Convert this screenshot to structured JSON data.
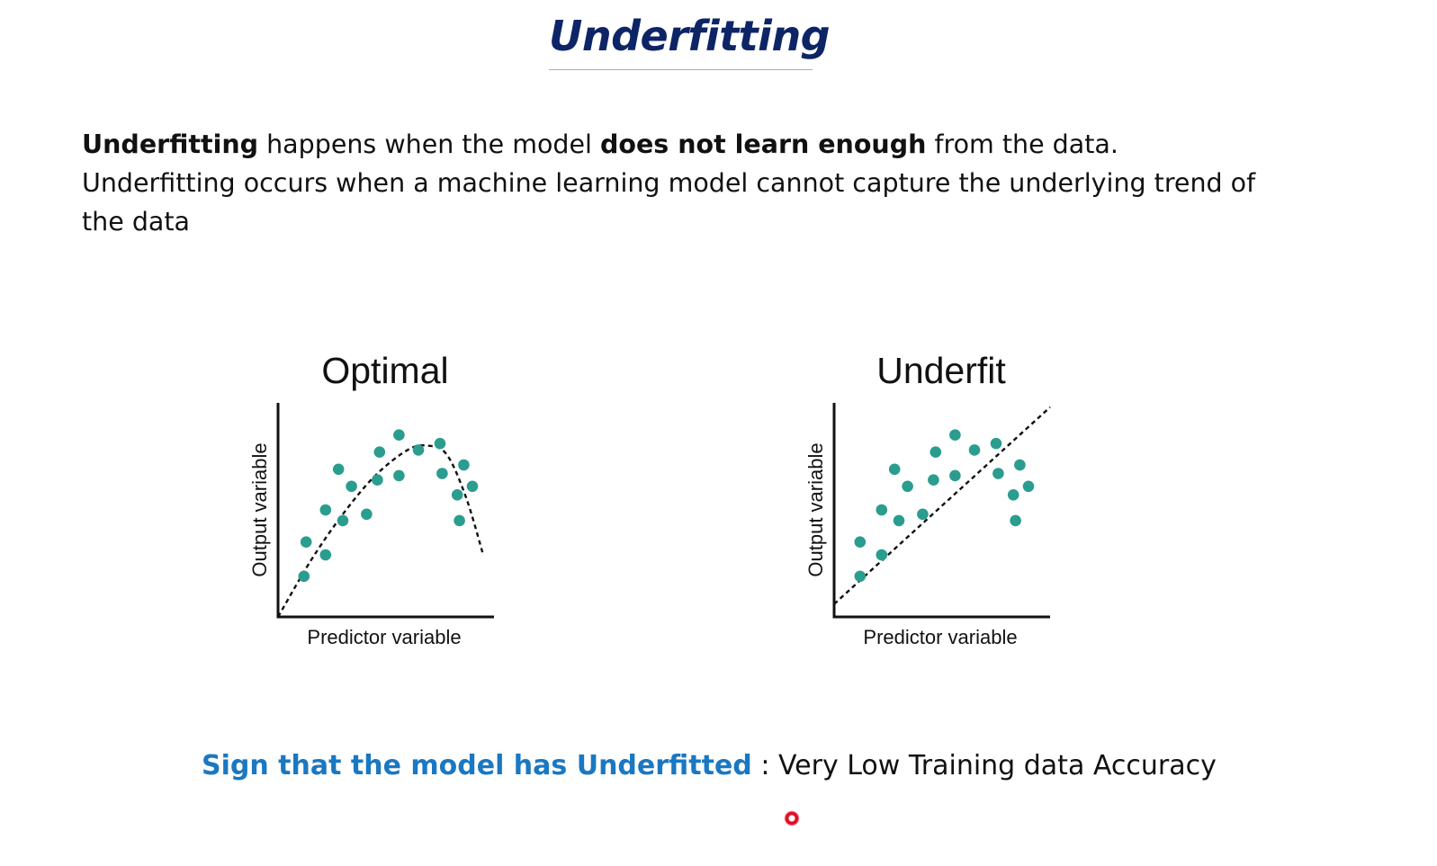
{
  "slide": {
    "title": "Underfitting",
    "intro": {
      "term": "Underfitting",
      "text_1": " happens when the model ",
      "emphasis": "does not learn enough",
      "text_2": " from the data. Underfitting occurs when a machine learning model cannot capture the underlying trend of the data"
    },
    "conclusion": {
      "sign": "Sign that the model has Underfitted",
      "text": " : Very Low Training data Accuracy"
    }
  },
  "colors": {
    "title": "#0d2566",
    "sign_text": "#1a78c2",
    "points": "#2a9d8f",
    "laser": "#e0102a"
  },
  "chart_data": [
    {
      "type": "scatter",
      "title": "Optimal",
      "xlabel": "Predictor variable",
      "ylabel": "Output variable",
      "xlim": [
        0,
        10
      ],
      "ylim": [
        0,
        10
      ],
      "grid": false,
      "points": [
        {
          "x": 1.2,
          "y": 1.9
        },
        {
          "x": 1.3,
          "y": 3.5
        },
        {
          "x": 2.2,
          "y": 2.9
        },
        {
          "x": 2.2,
          "y": 5.0
        },
        {
          "x": 2.8,
          "y": 6.9
        },
        {
          "x": 3.0,
          "y": 4.5
        },
        {
          "x": 3.4,
          "y": 6.1
        },
        {
          "x": 4.1,
          "y": 4.8
        },
        {
          "x": 4.6,
          "y": 6.4
        },
        {
          "x": 4.7,
          "y": 7.7
        },
        {
          "x": 5.6,
          "y": 6.6
        },
        {
          "x": 5.6,
          "y": 8.5
        },
        {
          "x": 6.5,
          "y": 7.8
        },
        {
          "x": 7.5,
          "y": 8.1
        },
        {
          "x": 7.6,
          "y": 6.7
        },
        {
          "x": 8.3,
          "y": 5.7
        },
        {
          "x": 8.4,
          "y": 4.5
        },
        {
          "x": 8.6,
          "y": 7.1
        },
        {
          "x": 9.0,
          "y": 6.1
        }
      ],
      "fit": {
        "style": "dashed",
        "shape": "curve",
        "points": [
          {
            "x": 0.0,
            "y": 0.0
          },
          {
            "x": 1.5,
            "y": 2.6
          },
          {
            "x": 3.0,
            "y": 4.8
          },
          {
            "x": 4.5,
            "y": 6.6
          },
          {
            "x": 6.0,
            "y": 7.8
          },
          {
            "x": 6.9,
            "y": 8.0
          },
          {
            "x": 7.8,
            "y": 7.6
          },
          {
            "x": 8.7,
            "y": 5.6
          },
          {
            "x": 9.5,
            "y": 2.9
          }
        ]
      }
    },
    {
      "type": "scatter",
      "title": "Underfit",
      "xlabel": "Predictor variable",
      "ylabel": "Output variable",
      "xlim": [
        0,
        10
      ],
      "ylim": [
        0,
        10
      ],
      "grid": false,
      "points": [
        {
          "x": 1.2,
          "y": 1.9
        },
        {
          "x": 1.2,
          "y": 3.5
        },
        {
          "x": 2.2,
          "y": 2.9
        },
        {
          "x": 2.2,
          "y": 5.0
        },
        {
          "x": 2.8,
          "y": 6.9
        },
        {
          "x": 3.0,
          "y": 4.5
        },
        {
          "x": 3.4,
          "y": 6.1
        },
        {
          "x": 4.1,
          "y": 4.8
        },
        {
          "x": 4.6,
          "y": 6.4
        },
        {
          "x": 4.7,
          "y": 7.7
        },
        {
          "x": 5.6,
          "y": 6.6
        },
        {
          "x": 5.6,
          "y": 8.5
        },
        {
          "x": 6.5,
          "y": 7.8
        },
        {
          "x": 7.5,
          "y": 8.1
        },
        {
          "x": 7.6,
          "y": 6.7
        },
        {
          "x": 8.3,
          "y": 5.7
        },
        {
          "x": 8.4,
          "y": 4.5
        },
        {
          "x": 8.6,
          "y": 7.1
        },
        {
          "x": 9.0,
          "y": 6.1
        }
      ],
      "fit": {
        "style": "dashed",
        "shape": "line",
        "points": [
          {
            "x": 0.0,
            "y": 0.6
          },
          {
            "x": 10.0,
            "y": 9.8
          }
        ]
      }
    }
  ]
}
